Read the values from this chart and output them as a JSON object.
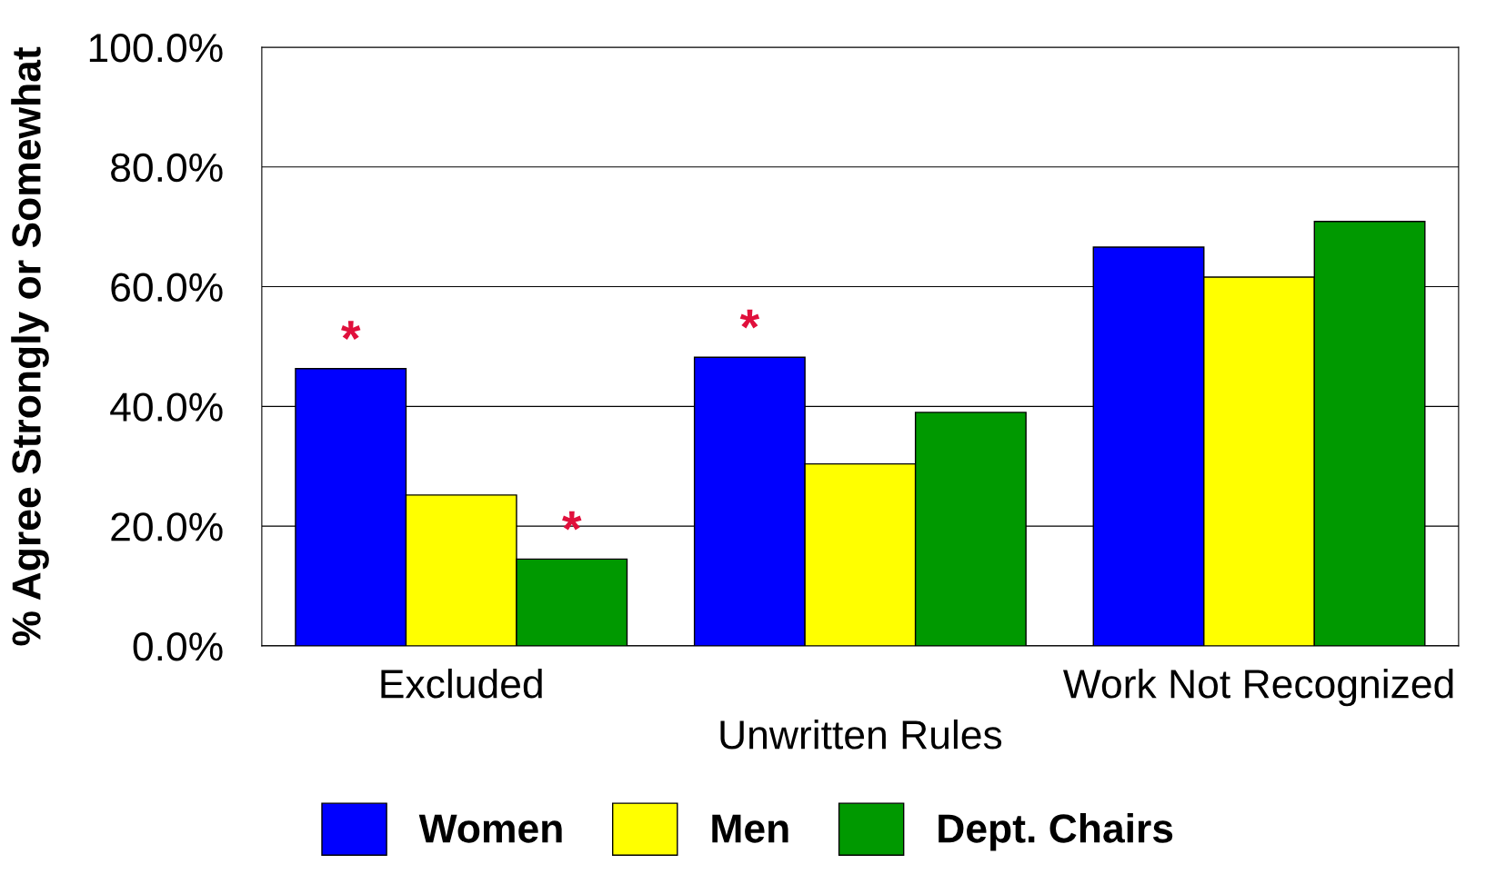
{
  "chart_data": {
    "type": "bar",
    "ylabel": "% Agree Strongly or Somewhat",
    "categories": [
      "Excluded",
      "Unwritten Rules",
      "Work Not Recognized"
    ],
    "series": [
      {
        "name": "Women",
        "color": "#0000ff",
        "values": [
          46.3,
          48.2,
          66.6
        ],
        "value_labels": [
          "*",
          "*",
          null
        ]
      },
      {
        "name": "Men",
        "color": "#ffff00",
        "values": [
          25.2,
          30.4,
          61.6
        ]
      },
      {
        "name": "Dept. Chairs",
        "color": "#009900",
        "values": [
          14.5,
          39.0,
          70.9
        ],
        "value_labels": [
          "*",
          null,
          null
        ]
      }
    ],
    "ylim": [
      0,
      100
    ],
    "yticks": [
      {
        "value": 0,
        "label": "0.0%"
      },
      {
        "value": 20,
        "label": "20.0%"
      },
      {
        "value": 40,
        "label": "40.0%"
      },
      {
        "value": 60,
        "label": "60.0%"
      },
      {
        "value": 80,
        "label": "80.0%"
      },
      {
        "value": 100,
        "label": "100.0%"
      }
    ],
    "grid": "y",
    "legend": "bottom"
  }
}
